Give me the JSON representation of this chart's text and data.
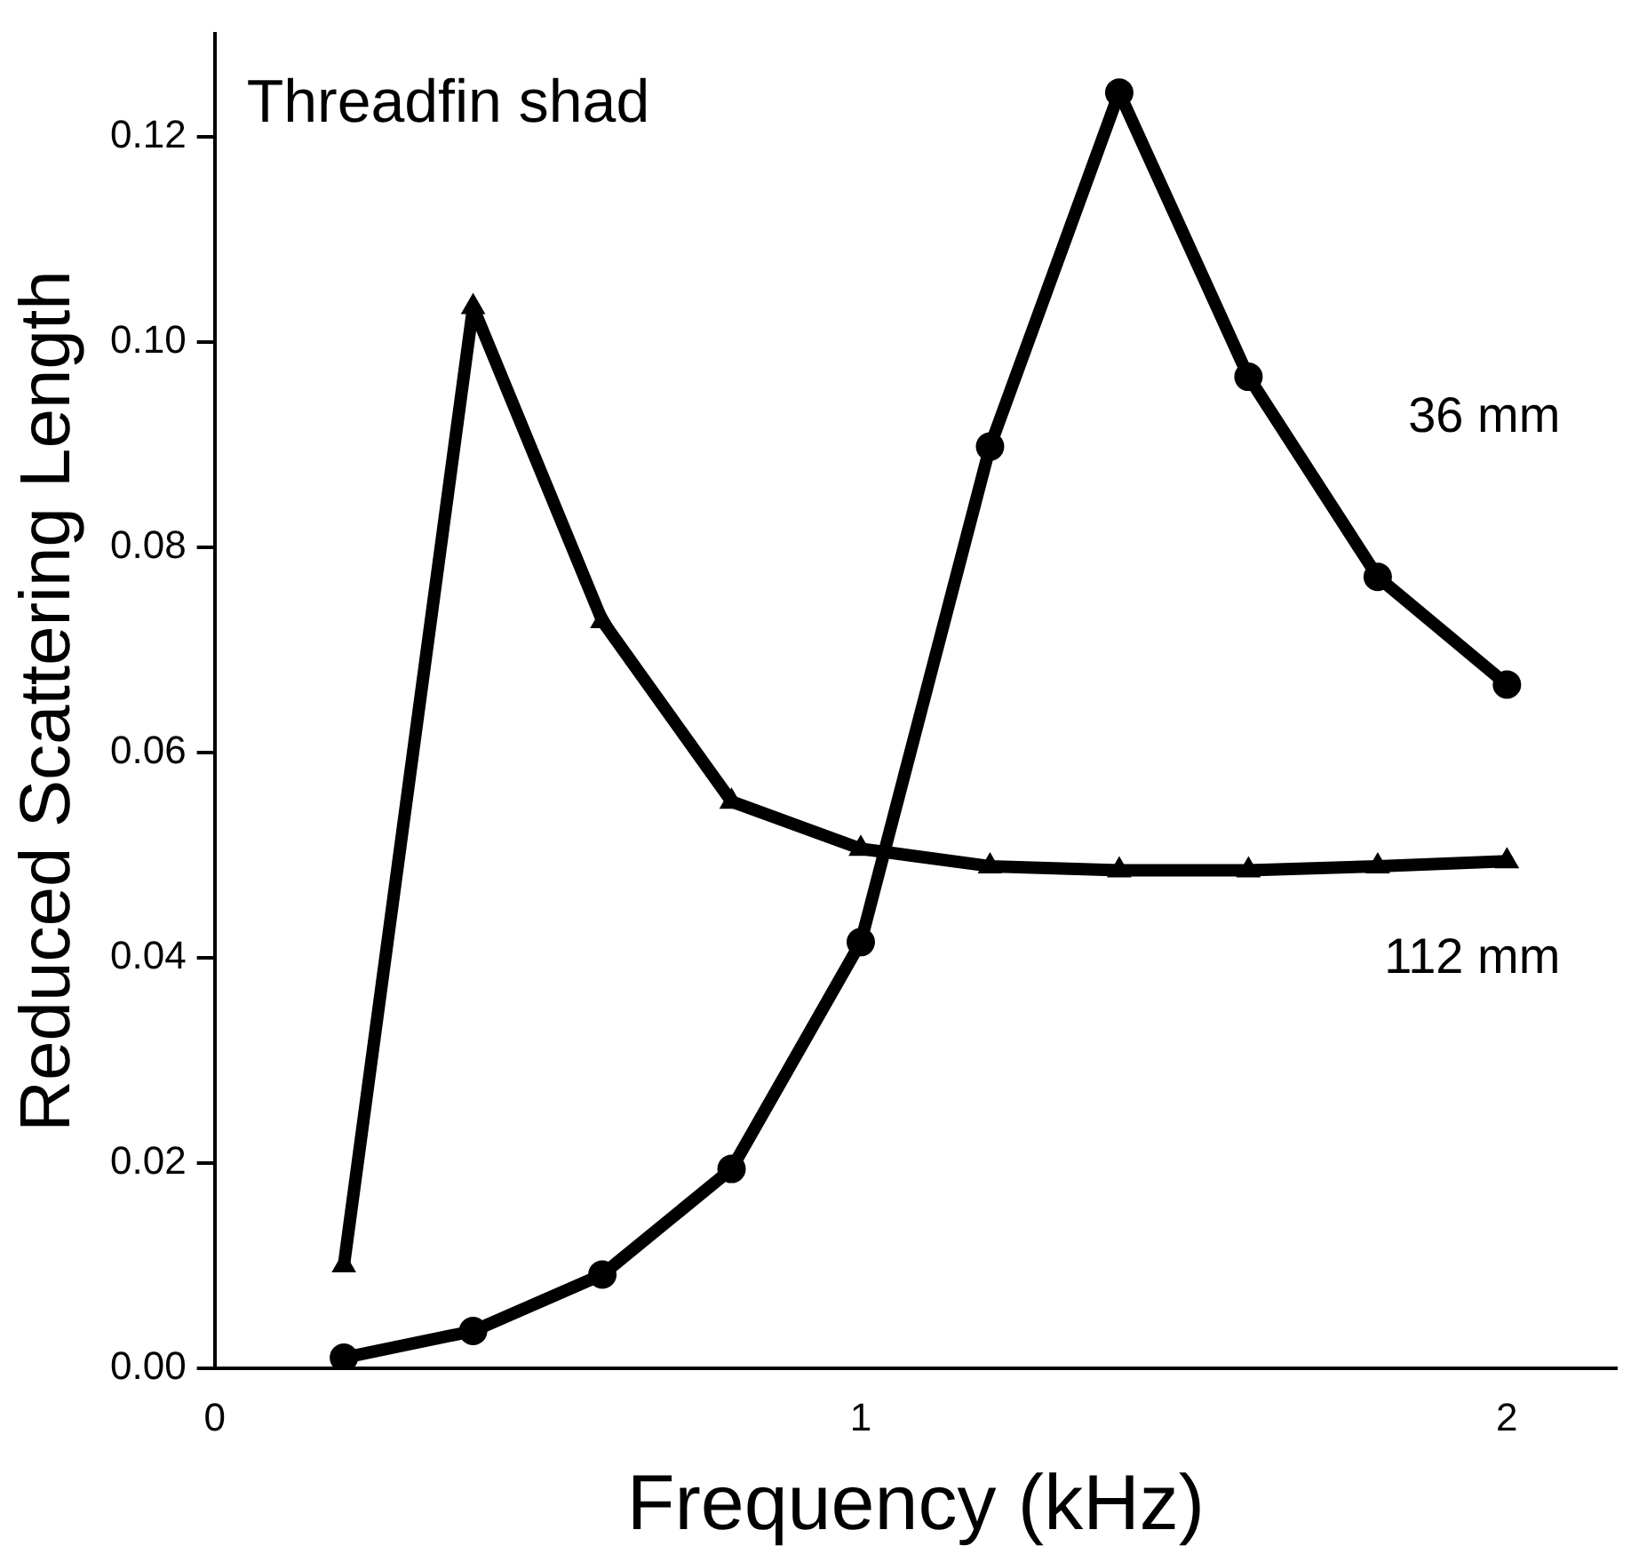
{
  "chart_data": {
    "type": "line",
    "title": "Threadfin shad",
    "xlabel": "Frequency (kHz)",
    "ylabel": "Reduced Scattering Length",
    "xlim": [
      0,
      2.17
    ],
    "xticks": [
      0,
      1,
      2
    ],
    "ylim": [
      0,
      0.13
    ],
    "yticks": [
      {
        "value": 0,
        "label": "0.00"
      },
      {
        "value": 0.02,
        "label": "0.02"
      },
      {
        "value": 0.04,
        "label": "0.04"
      },
      {
        "value": 0.06,
        "label": "0.06"
      },
      {
        "value": 0.08,
        "label": "0.08"
      },
      {
        "value": 0.1,
        "label": "0.10"
      },
      {
        "value": 0.12,
        "label": "0.12"
      }
    ],
    "grid": false,
    "legend": false,
    "line_style": "solid",
    "series": [
      {
        "name": "36 mm",
        "color": "#000000",
        "marker": "circle",
        "x": [
          0.2,
          0.4,
          0.6,
          0.8,
          1.0,
          1.2,
          1.4,
          1.6,
          1.8,
          2.0
        ],
        "values": [
          0.001,
          0.0036,
          0.0091,
          0.0194,
          0.0415,
          0.0898,
          0.1243,
          0.0966,
          0.0771,
          0.0666
        ]
      },
      {
        "name": "112 mm",
        "color": "#000000",
        "marker": "triangle",
        "x": [
          0.2,
          0.4,
          0.6,
          0.8,
          1.0,
          1.2,
          1.4,
          1.6,
          1.8,
          2.0
        ],
        "values": [
          0.01,
          0.1034,
          0.0728,
          0.0552,
          0.0506,
          0.0489,
          0.0485,
          0.0485,
          0.0489,
          0.0494
        ]
      }
    ]
  }
}
